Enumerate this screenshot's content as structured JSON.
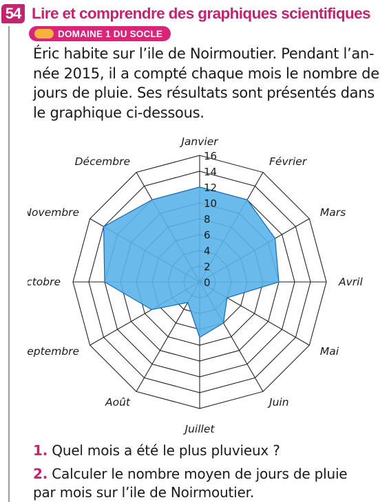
{
  "exercise": {
    "number": "54",
    "title": "Lire et comprendre des graphiques scientifiques",
    "badge": "DOMAINE 1 DU SOCLE"
  },
  "intro_lines": [
    "Éric habite sur l’ile de Noirmoutier. Pendant l’an-",
    "née 2015, il a compté chaque mois le nombre de",
    "jours de pluie. Ses résultats sont présentés dans",
    "le graphique ci-dessous."
  ],
  "questions": [
    {
      "num": "1.",
      "lines": [
        "Quel mois a été le plus pluvieux ?"
      ]
    },
    {
      "num": "2.",
      "lines": [
        "Calculer le nombre moyen de jours de pluie",
        "par mois sur l’ile de Noirmoutier."
      ]
    }
  ],
  "colors": {
    "accent": "#c2256e",
    "badge_dot": "#f3b33c",
    "fill": "#5ab4ea",
    "stroke": "#1f6fb8"
  },
  "chart_data": {
    "type": "radar",
    "categories": [
      "Janvier",
      "Février",
      "Mars",
      "Avril",
      "Mai",
      "Juin",
      "Juillet",
      "Août",
      "Septembre",
      "Octobre",
      "Novembre",
      "Décembre"
    ],
    "values": [
      12,
      12,
      11,
      10,
      4,
      6,
      7,
      3,
      7,
      12,
      14,
      12
    ],
    "ticks": [
      "0",
      "2",
      "4",
      "6",
      "8",
      "10",
      "12",
      "14",
      "16"
    ],
    "rlim": [
      0,
      16
    ]
  }
}
